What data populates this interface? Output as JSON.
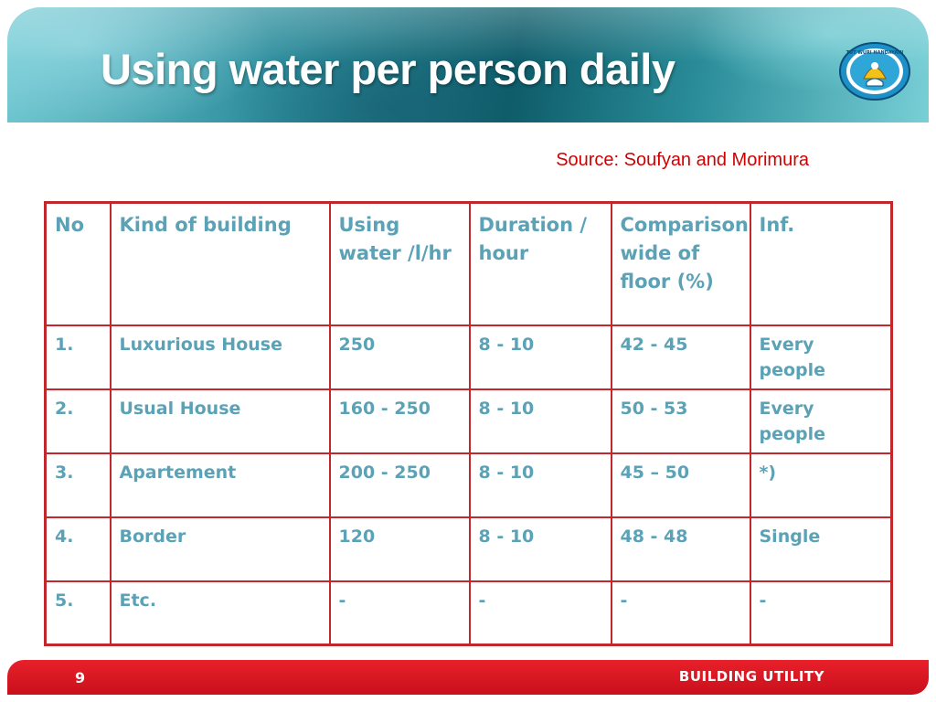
{
  "slide": {
    "title": "Using water per person daily",
    "source": "Source: Soufyan and Morimura",
    "page_number": "9",
    "footer_label": "BUILDING UTILITY"
  },
  "colors": {
    "accent_red": "#c0282d",
    "text_teal": "#5ca2b6",
    "source_red": "#d00000"
  },
  "logo": {
    "icon": "tut-wuri-handayani-emblem-icon",
    "text": "TUT WURI HANDAYANI"
  },
  "table": {
    "headers": [
      "No",
      "Kind of building",
      "Using water /l/hr",
      "Duration / hour",
      "Comparison wide of floor (%)",
      "Inf."
    ],
    "rows": [
      [
        "1.",
        "Luxurious House",
        "250",
        "8 - 10",
        "42 - 45",
        "Every people"
      ],
      [
        "2.",
        "Usual House",
        "160 - 250",
        "8 - 10",
        "50 - 53",
        "Every people"
      ],
      [
        "3.",
        "Apartement",
        "200 - 250",
        "8 - 10",
        "45 – 50",
        "*)"
      ],
      [
        "4.",
        "Border",
        "120",
        "8 - 10",
        "48 - 48",
        "Single"
      ],
      [
        "5.",
        "Etc.",
        "-",
        "-",
        "-",
        "-"
      ]
    ]
  }
}
